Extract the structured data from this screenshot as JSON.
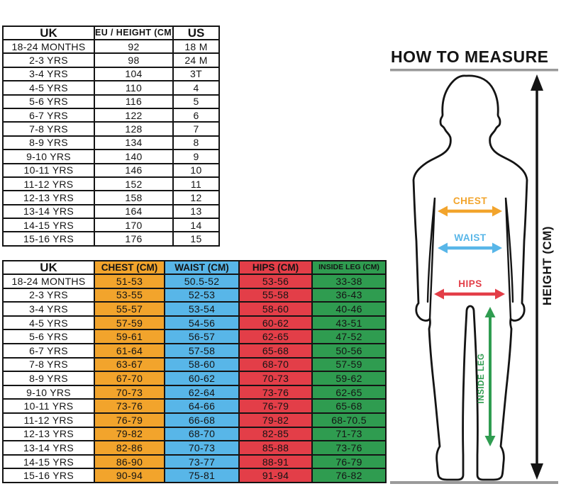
{
  "how_to_measure": {
    "title": "HOW TO MEASURE",
    "chest_label": "CHEST",
    "waist_label": "WAIST",
    "hips_label": "HIPS",
    "inside_leg_label": "INSIDE LEG",
    "height_label": "HEIGHT (CM)"
  },
  "size_table": {
    "columns": [
      "UK",
      "EU / HEIGHT (CM)",
      "US"
    ],
    "rows": [
      [
        "18-24 MONTHS",
        "92",
        "18 M"
      ],
      [
        "2-3 YRS",
        "98",
        "24 M"
      ],
      [
        "3-4 YRS",
        "104",
        "3T"
      ],
      [
        "4-5 YRS",
        "110",
        "4"
      ],
      [
        "5-6 YRS",
        "116",
        "5"
      ],
      [
        "6-7 YRS",
        "122",
        "6"
      ],
      [
        "7-8 YRS",
        "128",
        "7"
      ],
      [
        "8-9 YRS",
        "134",
        "8"
      ],
      [
        "9-10 YRS",
        "140",
        "9"
      ],
      [
        "10-11 YRS",
        "146",
        "10"
      ],
      [
        "11-12 YRS",
        "152",
        "11"
      ],
      [
        "12-13 YRS",
        "158",
        "12"
      ],
      [
        "13-14 YRS",
        "164",
        "13"
      ],
      [
        "14-15 YRS",
        "170",
        "14"
      ],
      [
        "15-16 YRS",
        "176",
        "15"
      ]
    ]
  },
  "body_table": {
    "columns": [
      "UK",
      "CHEST (CM)",
      "WAIST (CM)",
      "HIPS (CM)",
      "INSIDE LEG (CM)"
    ],
    "header_colors": [
      "#FFFFFF",
      "#F2A42C",
      "#58B6E8",
      "#E33E48",
      "#2F9C50"
    ],
    "column_colors": [
      "#FFFFFF",
      "#F2A42C",
      "#58B6E8",
      "#E33E48",
      "#2F9C50"
    ],
    "rows": [
      [
        "18-24 MONTHS",
        "51-53",
        "50.5-52",
        "53-56",
        "33-38"
      ],
      [
        "2-3 YRS",
        "53-55",
        "52-53",
        "55-58",
        "36-43"
      ],
      [
        "3-4 YRS",
        "55-57",
        "53-54",
        "58-60",
        "40-46"
      ],
      [
        "4-5 YRS",
        "57-59",
        "54-56",
        "60-62",
        "43-51"
      ],
      [
        "5-6 YRS",
        "59-61",
        "56-57",
        "62-65",
        "47-52"
      ],
      [
        "6-7 YRS",
        "61-64",
        "57-58",
        "65-68",
        "50-56"
      ],
      [
        "7-8 YRS",
        "63-67",
        "58-60",
        "68-70",
        "57-59"
      ],
      [
        "8-9 YRS",
        "67-70",
        "60-62",
        "70-73",
        "59-62"
      ],
      [
        "9-10 YRS",
        "70-73",
        "62-64",
        "73-76",
        "62-65"
      ],
      [
        "10-11 YRS",
        "73-76",
        "64-66",
        "76-79",
        "65-68"
      ],
      [
        "11-12 YRS",
        "76-79",
        "66-68",
        "79-82",
        "68-70.5"
      ],
      [
        "12-13 YRS",
        "79-82",
        "68-70",
        "82-85",
        "71-73"
      ],
      [
        "13-14 YRS",
        "82-86",
        "70-73",
        "85-88",
        "73-76"
      ],
      [
        "14-15 YRS",
        "86-90",
        "73-77",
        "88-91",
        "76-79"
      ],
      [
        "15-16 YRS",
        "90-94",
        "75-81",
        "91-94",
        "76-82"
      ]
    ]
  },
  "colors": {
    "chest": "#F2A42C",
    "waist": "#58B6E8",
    "hips": "#E33E48",
    "inside_leg": "#2F9C50",
    "outline": "#141414",
    "rule": "#9A9A9A"
  }
}
